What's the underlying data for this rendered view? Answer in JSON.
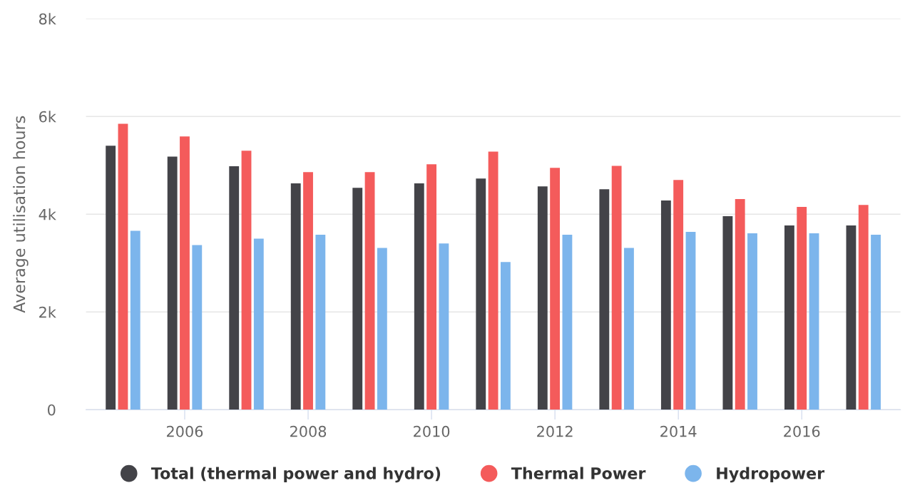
{
  "chart_data": {
    "type": "bar",
    "ylabel": "Average utilisation hours",
    "x": [
      2005,
      2006,
      2007,
      2008,
      2009,
      2010,
      2011,
      2012,
      2013,
      2014,
      2015,
      2016,
      2017
    ],
    "series": [
      {
        "name": "Total (thermal power and hydro)",
        "color": "#434348",
        "values": [
          5400,
          5180,
          4980,
          4630,
          4540,
          4630,
          4730,
          4570,
          4510,
          4280,
          3960,
          3770,
          3770
        ]
      },
      {
        "name": "Thermal Power",
        "color": "#f45b5b",
        "values": [
          5850,
          5590,
          5300,
          4860,
          4860,
          5020,
          5280,
          4950,
          4990,
          4700,
          4310,
          4150,
          4190
        ]
      },
      {
        "name": "Hydropower",
        "color": "#7cb5ec",
        "values": [
          3660,
          3370,
          3500,
          3580,
          3310,
          3400,
          3020,
          3580,
          3310,
          3640,
          3610,
          3610,
          3580
        ]
      }
    ],
    "xlim": [
      2004.4,
      2017.6
    ],
    "xticks": [
      2006,
      2008,
      2010,
      2012,
      2014,
      2016
    ],
    "ylim": [
      0,
      8000
    ],
    "yticks": [
      {
        "value": 0,
        "label": "0"
      },
      {
        "value": 2000,
        "label": "2k"
      },
      {
        "value": 4000,
        "label": "4k"
      },
      {
        "value": 6000,
        "label": "6k"
      },
      {
        "value": 8000,
        "label": "8k"
      }
    ],
    "grid": "y",
    "legend": "bottom"
  }
}
